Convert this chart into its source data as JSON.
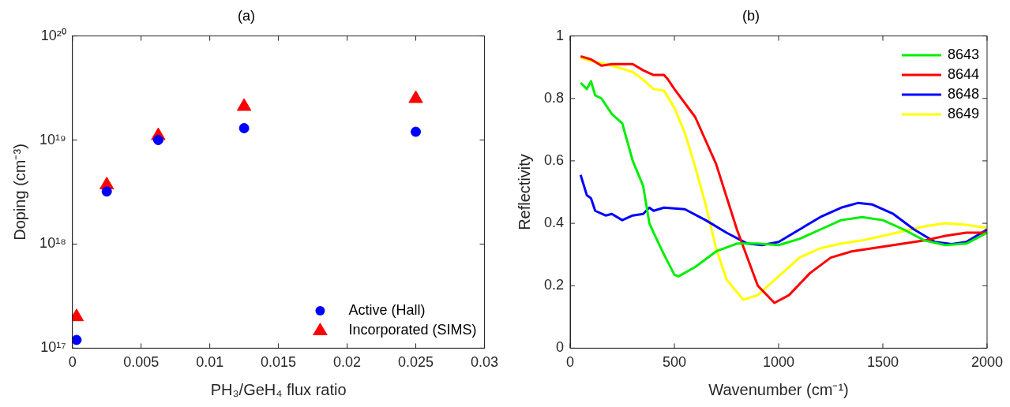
{
  "chart_data": [
    {
      "type": "scatter",
      "title": "(a)",
      "xlabel": "PH₃/GeH₄ flux ratio",
      "ylabel": "Doping (cm⁻³)",
      "log": "y",
      "grid": false,
      "legend": "bottom right",
      "xlim": [
        0,
        0.03
      ],
      "xticks": [
        0,
        0.005,
        0.01,
        0.015,
        0.02,
        0.025,
        0.03
      ],
      "ylim": [
        1e+17,
        1e+20
      ],
      "yticks": [
        {
          "value": 1e+17,
          "label": "10¹⁷"
        },
        {
          "value": 1e+18,
          "label": "10¹⁸"
        },
        {
          "value": 1e+19,
          "label": "10¹⁹"
        },
        {
          "value": 1e+20,
          "label": "10²⁰"
        }
      ],
      "series": [
        {
          "name": "Active (Hall)",
          "color": "#0000ff",
          "marker": "circle",
          "x": [
            0.0003,
            0.0025,
            0.00625,
            0.0125,
            0.025
          ],
          "values": [
            1.2e+17,
            3.2e+18,
            1e+19,
            1.3e+19,
            1.2e+19
          ]
        },
        {
          "name": "Incorporated (SIMS)",
          "color": "#ff0000",
          "marker": "triangle",
          "x": [
            0.0003,
            0.0025,
            0.00625,
            0.0125,
            0.025
          ],
          "values": [
            2e+17,
            3.7e+18,
            1.1e+19,
            2.1e+19,
            2.5e+19
          ]
        }
      ]
    },
    {
      "type": "line",
      "title": "(b)",
      "xlabel": "Wavenumber (cm⁻¹)",
      "ylabel": "Reflectivity",
      "grid": false,
      "legend": "top right",
      "marker": "none",
      "line_style": "solid",
      "xlim": [
        0,
        2000
      ],
      "xticks": [
        0,
        500,
        1000,
        1500,
        2000
      ],
      "ylim": [
        0,
        1
      ],
      "yticks": [
        0,
        0.2,
        0.4,
        0.6,
        0.8,
        1
      ],
      "series": [
        {
          "name": "8643",
          "color": "#00ee00",
          "x": [
            50,
            80,
            100,
            120,
            150,
            200,
            250,
            300,
            350,
            380,
            400,
            450,
            500,
            520,
            600,
            700,
            800,
            900,
            1000,
            1100,
            1200,
            1300,
            1400,
            1500,
            1600,
            1700,
            1800,
            1900,
            2000
          ],
          "values": [
            0.85,
            0.83,
            0.855,
            0.81,
            0.8,
            0.75,
            0.72,
            0.6,
            0.52,
            0.4,
            0.37,
            0.3,
            0.235,
            0.23,
            0.26,
            0.31,
            0.335,
            0.335,
            0.33,
            0.35,
            0.38,
            0.41,
            0.42,
            0.41,
            0.38,
            0.345,
            0.33,
            0.335,
            0.37
          ]
        },
        {
          "name": "8644",
          "color": "#ff0000",
          "x": [
            50,
            100,
            150,
            200,
            300,
            350,
            400,
            450,
            470,
            500,
            600,
            700,
            800,
            900,
            980,
            1050,
            1150,
            1250,
            1350,
            1500,
            1600,
            1700,
            1800,
            1900,
            2000
          ],
          "values": [
            0.935,
            0.925,
            0.905,
            0.91,
            0.91,
            0.89,
            0.875,
            0.875,
            0.86,
            0.83,
            0.74,
            0.59,
            0.38,
            0.2,
            0.145,
            0.17,
            0.24,
            0.29,
            0.31,
            0.325,
            0.335,
            0.345,
            0.36,
            0.37,
            0.37
          ]
        },
        {
          "name": "8648",
          "color": "#0000ff",
          "x": [
            50,
            80,
            100,
            120,
            170,
            200,
            250,
            300,
            350,
            380,
            400,
            450,
            550,
            650,
            750,
            850,
            920,
            1000,
            1100,
            1200,
            1300,
            1380,
            1450,
            1550,
            1650,
            1750,
            1830,
            1900,
            2000
          ],
          "values": [
            0.555,
            0.49,
            0.48,
            0.44,
            0.425,
            0.43,
            0.41,
            0.425,
            0.43,
            0.45,
            0.44,
            0.45,
            0.445,
            0.41,
            0.37,
            0.335,
            0.33,
            0.34,
            0.38,
            0.42,
            0.45,
            0.465,
            0.46,
            0.43,
            0.38,
            0.34,
            0.333,
            0.34,
            0.38
          ]
        },
        {
          "name": "8649",
          "color": "#ffff00",
          "x": [
            50,
            100,
            200,
            300,
            350,
            400,
            450,
            500,
            550,
            600,
            650,
            700,
            750,
            830,
            900,
            1000,
            1100,
            1200,
            1300,
            1400,
            1500,
            1600,
            1700,
            1800,
            1900,
            2000
          ],
          "values": [
            0.93,
            0.92,
            0.905,
            0.885,
            0.86,
            0.83,
            0.825,
            0.77,
            0.69,
            0.58,
            0.46,
            0.32,
            0.22,
            0.155,
            0.17,
            0.23,
            0.29,
            0.32,
            0.335,
            0.345,
            0.36,
            0.375,
            0.39,
            0.4,
            0.395,
            0.385
          ]
        }
      ]
    }
  ]
}
